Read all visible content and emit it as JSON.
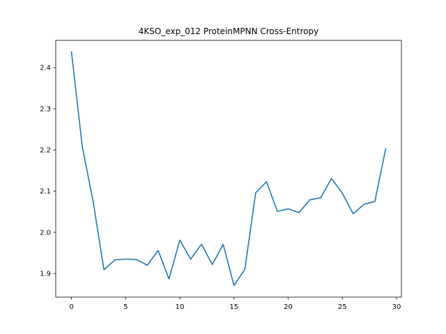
{
  "chart_data": {
    "type": "line",
    "title": "4KSO_exp_012 ProteinMPNN Cross-Entropy",
    "xlabel": "",
    "ylabel": "",
    "x": [
      0,
      1,
      2,
      3,
      4,
      5,
      6,
      7,
      8,
      9,
      10,
      11,
      12,
      13,
      14,
      15,
      16,
      17,
      18,
      19,
      20,
      21,
      22,
      23,
      24,
      25,
      26,
      27,
      28,
      29
    ],
    "series": [
      {
        "values": [
          2.438,
          2.208,
          2.075,
          1.909,
          1.933,
          1.935,
          1.934,
          1.92,
          1.956,
          1.887,
          1.981,
          1.935,
          1.971,
          1.922,
          1.971,
          1.871,
          1.91,
          2.096,
          2.123,
          2.051,
          2.057,
          2.048,
          2.079,
          2.084,
          2.131,
          2.095,
          2.045,
          2.068,
          2.075,
          2.203
        ]
      }
    ],
    "xlim": [
      -1.45,
      30.45
    ],
    "ylim": [
      1.8427,
      2.4663
    ],
    "xticks": [
      0,
      5,
      10,
      15,
      20,
      25,
      30
    ],
    "xtick_labels": [
      "0",
      "5",
      "10",
      "15",
      "20",
      "25",
      "30"
    ],
    "yticks": [
      1.9,
      2.0,
      2.1,
      2.2,
      2.3,
      2.4
    ],
    "ytick_labels": [
      "1.9",
      "2.0",
      "2.1",
      "2.2",
      "2.3",
      "2.4"
    ],
    "line_color": "#1f77b4",
    "grid": false,
    "legend": "none"
  }
}
